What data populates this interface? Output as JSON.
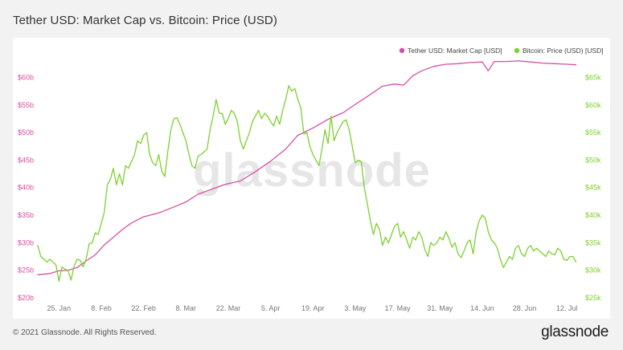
{
  "title": "Tether USD: Market Cap vs. Bitcoin: Price (USD)",
  "footer": {
    "copyright": "© 2021 Glassnode. All Rights Reserved.",
    "logo": "glassnode"
  },
  "watermark": "glassnode",
  "colors": {
    "tether": "#d64fa3",
    "bitcoin": "#7cd12e",
    "watermark": "#e6e6e6",
    "tick": "#777777"
  },
  "chart_data": {
    "type": "line",
    "title": "Tether USD: Market Cap vs. Bitcoin: Price (USD)",
    "xlabel": "",
    "ylabel_left": "Tether USD: Market Cap [USD]",
    "ylabel_right": "Bitcoin: Price (USD) [USD]",
    "legend": [
      {
        "name": "Tether USD: Market Cap [USD]",
        "color": "#d64fa3"
      },
      {
        "name": "Bitcoin: Price (USD) [USD]",
        "color": "#7cd12e"
      }
    ],
    "legend_position": "top-right",
    "x_ticks": [
      "25. Jan",
      "8. Feb",
      "22. Feb",
      "8. Mar",
      "22. Mar",
      "5. Apr",
      "19. Apr",
      "3. May",
      "17. May",
      "31. May",
      "14. Jun",
      "28. Jun",
      "12. Jul"
    ],
    "x_tick_days": [
      7,
      21,
      35,
      49,
      63,
      77,
      91,
      105,
      119,
      133,
      147,
      161,
      175
    ],
    "x_range_days": [
      0,
      180
    ],
    "y_left": {
      "ticks": [
        "$20b",
        "$25b",
        "$30b",
        "$35b",
        "$40b",
        "$45b",
        "$50b",
        "$55b",
        "$60b"
      ],
      "tick_values": [
        20,
        25,
        30,
        35,
        40,
        45,
        50,
        55,
        60
      ],
      "range": [
        20,
        64
      ]
    },
    "y_right": {
      "ticks": [
        "$25k",
        "$30k",
        "$35k",
        "$40k",
        "$45k",
        "$50k",
        "$55k",
        "$60k",
        "$65k"
      ],
      "tick_values": [
        25,
        30,
        35,
        40,
        45,
        50,
        55,
        60,
        65
      ],
      "range": [
        25,
        69
      ]
    },
    "grid": false,
    "series": [
      {
        "name": "Tether USD: Market Cap [USD]",
        "axis": "left",
        "unit": "billion USD",
        "points": [
          [
            0,
            24.2
          ],
          [
            4,
            24.4
          ],
          [
            7,
            24.9
          ],
          [
            10,
            25.0
          ],
          [
            13,
            25.5
          ],
          [
            16,
            26.7
          ],
          [
            19,
            27.8
          ],
          [
            22,
            29.6
          ],
          [
            25,
            31.0
          ],
          [
            28,
            32.4
          ],
          [
            31,
            33.6
          ],
          [
            35,
            34.7
          ],
          [
            40,
            35.4
          ],
          [
            45,
            36.5
          ],
          [
            49,
            37.4
          ],
          [
            53,
            38.8
          ],
          [
            58,
            39.8
          ],
          [
            62,
            40.6
          ],
          [
            67,
            41.2
          ],
          [
            72,
            42.9
          ],
          [
            77,
            44.8
          ],
          [
            82,
            47.0
          ],
          [
            86,
            49.5
          ],
          [
            91,
            50.8
          ],
          [
            96,
            52.4
          ],
          [
            101,
            53.6
          ],
          [
            105,
            55.1
          ],
          [
            110,
            56.9
          ],
          [
            114,
            58.4
          ],
          [
            118,
            58.8
          ],
          [
            121,
            58.6
          ],
          [
            124,
            60.3
          ],
          [
            127,
            61.2
          ],
          [
            131,
            62.0
          ],
          [
            135,
            62.4
          ],
          [
            139,
            62.5
          ],
          [
            143,
            62.7
          ],
          [
            147,
            62.8
          ],
          [
            149,
            61.2
          ],
          [
            151,
            62.9
          ],
          [
            155,
            62.9
          ],
          [
            159,
            63.0
          ],
          [
            163,
            62.8
          ],
          [
            167,
            62.6
          ],
          [
            171,
            62.5
          ],
          [
            175,
            62.4
          ],
          [
            178,
            62.3
          ]
        ]
      },
      {
        "name": "Bitcoin: Price (USD) [USD]",
        "axis": "right",
        "unit": "thousand USD",
        "points": [
          [
            0,
            34.5
          ],
          [
            1,
            32.5
          ],
          [
            3,
            31.5
          ],
          [
            4,
            32.0
          ],
          [
            6,
            31.0
          ],
          [
            7,
            28.0
          ],
          [
            8,
            30.6
          ],
          [
            9,
            30.2
          ],
          [
            10,
            30.0
          ],
          [
            11,
            28.2
          ],
          [
            12,
            30.7
          ],
          [
            13,
            32.0
          ],
          [
            14,
            31.8
          ],
          [
            15,
            30.6
          ],
          [
            16,
            32.1
          ],
          [
            17,
            34.8
          ],
          [
            18,
            35.0
          ],
          [
            19,
            36.8
          ],
          [
            20,
            36.5
          ],
          [
            21,
            38.5
          ],
          [
            22,
            40.5
          ],
          [
            23,
            45.5
          ],
          [
            24,
            46.5
          ],
          [
            25,
            48.5
          ],
          [
            26,
            45.5
          ],
          [
            27,
            47.5
          ],
          [
            28,
            45.5
          ],
          [
            29,
            49.0
          ],
          [
            30,
            48.5
          ],
          [
            32,
            51.0
          ],
          [
            33,
            53.5
          ],
          [
            34,
            53.0
          ],
          [
            35,
            54.5
          ],
          [
            36,
            55.0
          ],
          [
            37,
            51.0
          ],
          [
            38,
            49.5
          ],
          [
            39,
            49.0
          ],
          [
            40,
            51.0
          ],
          [
            41,
            48.0
          ],
          [
            42,
            47.0
          ],
          [
            43,
            51.5
          ],
          [
            44,
            55.5
          ],
          [
            45,
            57.5
          ],
          [
            46,
            57.7
          ],
          [
            47,
            56.5
          ],
          [
            48,
            55.0
          ],
          [
            49,
            53.5
          ],
          [
            50,
            51.0
          ],
          [
            51,
            49.0
          ],
          [
            52,
            48.5
          ],
          [
            53,
            50.7
          ],
          [
            54,
            51.0
          ],
          [
            55,
            51.5
          ],
          [
            56,
            52.0
          ],
          [
            57,
            55.5
          ],
          [
            58,
            58.0
          ],
          [
            59,
            61.0
          ],
          [
            60,
            58.5
          ],
          [
            61,
            58.5
          ],
          [
            62,
            56.5
          ],
          [
            63,
            57.5
          ],
          [
            64,
            59.0
          ],
          [
            65,
            58.5
          ],
          [
            66,
            57.0
          ],
          [
            67,
            53.5
          ],
          [
            68,
            52.0
          ],
          [
            69,
            53.5
          ],
          [
            70,
            55.0
          ],
          [
            71,
            57.0
          ],
          [
            72,
            58.0
          ],
          [
            73,
            59.0
          ],
          [
            74,
            57.5
          ],
          [
            75,
            58.5
          ],
          [
            76,
            58.0
          ],
          [
            77,
            57.0
          ],
          [
            78,
            56.2
          ],
          [
            79,
            58.0
          ],
          [
            80,
            56.5
          ],
          [
            81,
            59.0
          ],
          [
            82,
            61.0
          ],
          [
            83,
            63.5
          ],
          [
            84,
            62.5
          ],
          [
            85,
            63.0
          ],
          [
            86,
            61.0
          ],
          [
            87,
            59.5
          ],
          [
            88,
            54.7
          ],
          [
            89,
            55.0
          ],
          [
            90,
            52.5
          ],
          [
            91,
            51.0
          ],
          [
            92,
            50.0
          ],
          [
            93,
            49.0
          ],
          [
            94,
            52.0
          ],
          [
            95,
            55.5
          ],
          [
            96,
            53.0
          ],
          [
            97,
            58.0
          ],
          [
            98,
            53.5
          ],
          [
            99,
            55.0
          ],
          [
            100,
            56.0
          ],
          [
            101,
            57.0
          ],
          [
            102,
            57.3
          ],
          [
            103,
            55.5
          ],
          [
            104,
            52.5
          ],
          [
            105,
            49.5
          ],
          [
            106,
            50.0
          ],
          [
            107,
            49.7
          ],
          [
            108,
            45.0
          ],
          [
            109,
            42.0
          ],
          [
            110,
            39.0
          ],
          [
            111,
            36.5
          ],
          [
            112,
            38.5
          ],
          [
            113,
            37.5
          ],
          [
            114,
            34.5
          ],
          [
            115,
            36.0
          ],
          [
            116,
            35.0
          ],
          [
            117,
            36.5
          ],
          [
            118,
            38.0
          ],
          [
            119,
            38.5
          ],
          [
            120,
            36.0
          ],
          [
            121,
            37.0
          ],
          [
            122,
            35.5
          ],
          [
            123,
            34.0
          ],
          [
            124,
            36.0
          ],
          [
            125,
            35.5
          ],
          [
            126,
            37.0
          ],
          [
            127,
            36.0
          ],
          [
            128,
            33.8
          ],
          [
            129,
            32.5
          ],
          [
            130,
            35.0
          ],
          [
            131,
            34.5
          ],
          [
            132,
            35.0
          ],
          [
            133,
            36.0
          ],
          [
            134,
            35.5
          ],
          [
            135,
            37.0
          ],
          [
            136,
            35.8
          ],
          [
            137,
            34.2
          ],
          [
            138,
            35.0
          ],
          [
            139,
            33.0
          ],
          [
            140,
            32.3
          ],
          [
            141,
            33.5
          ],
          [
            142,
            35.0
          ],
          [
            143,
            35.5
          ],
          [
            144,
            33.0
          ],
          [
            145,
            37.0
          ],
          [
            146,
            39.0
          ],
          [
            147,
            40.0
          ],
          [
            148,
            39.5
          ],
          [
            149,
            37.0
          ],
          [
            150,
            35.5
          ],
          [
            151,
            35.0
          ],
          [
            152,
            34.0
          ],
          [
            153,
            32.0
          ],
          [
            154,
            30.5
          ],
          [
            155,
            31.5
          ],
          [
            156,
            32.5
          ],
          [
            157,
            32.0
          ],
          [
            158,
            34.0
          ],
          [
            159,
            34.5
          ],
          [
            160,
            33.0
          ],
          [
            161,
            32.5
          ],
          [
            162,
            34.0
          ],
          [
            163,
            34.5
          ],
          [
            164,
            33.5
          ],
          [
            165,
            34.0
          ],
          [
            166,
            33.5
          ],
          [
            167,
            33.0
          ],
          [
            168,
            32.5
          ],
          [
            169,
            33.5
          ],
          [
            170,
            33.0
          ],
          [
            171,
            32.8
          ],
          [
            172,
            34.0
          ],
          [
            173,
            33.5
          ],
          [
            174,
            32.0
          ],
          [
            175,
            31.8
          ],
          [
            176,
            32.5
          ],
          [
            177,
            32.5
          ],
          [
            178,
            31.5
          ]
        ]
      }
    ]
  }
}
